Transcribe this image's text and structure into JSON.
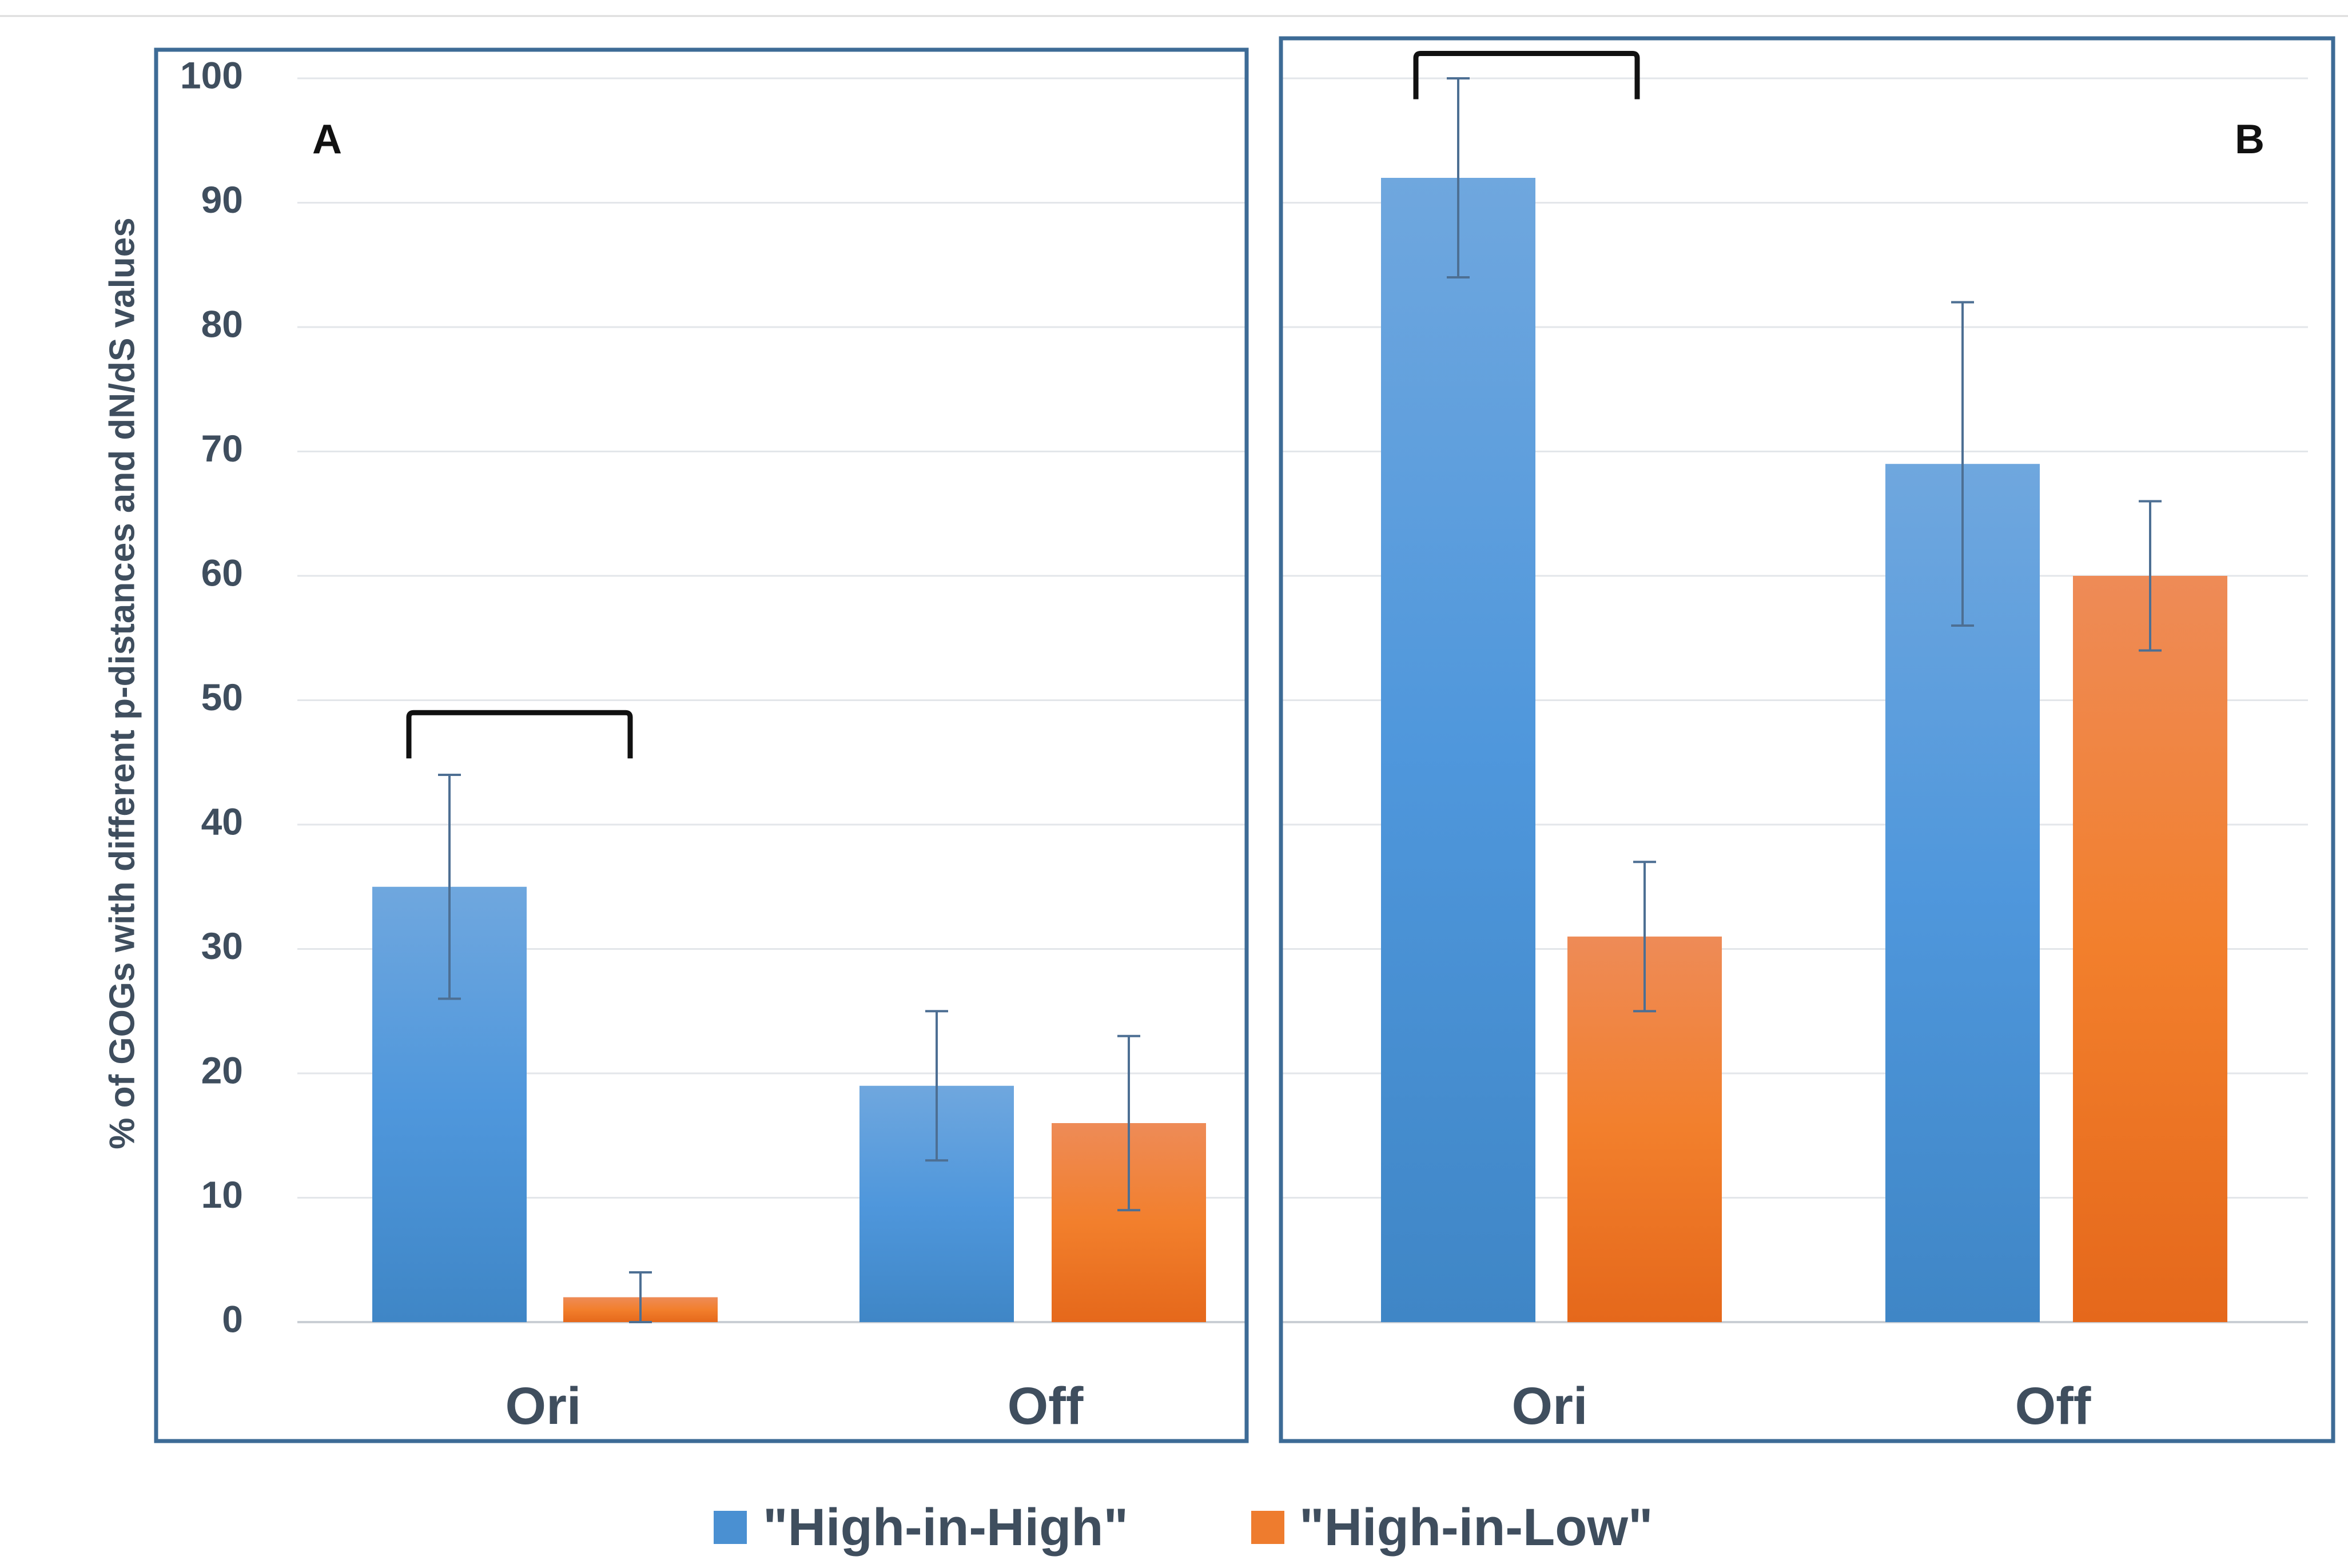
{
  "chart_data": {
    "type": "bar",
    "ylabel": "% of GOGs with different p-distances and dN/dS values",
    "ylim": [
      0,
      100
    ],
    "yticks": [
      "0",
      "10",
      "20",
      "30",
      "40",
      "50",
      "60",
      "70",
      "80",
      "90",
      "100"
    ],
    "grid": true,
    "legend_position": "bottom-center",
    "colors": {
      "high_in_high": "#4a90d2",
      "high_in_low": "#ee7c2e",
      "frame": "#3d6b96"
    },
    "series_names": [
      "\"High-in-High\"",
      "\"High-in-Low\""
    ],
    "panels": [
      {
        "label": "A",
        "categories": [
          "Ori",
          "Off"
        ],
        "series": [
          {
            "name": "\"High-in-High\"",
            "values": [
              35,
              19
            ],
            "err_low": [
              26,
              13
            ],
            "err_high": [
              44,
              25
            ]
          },
          {
            "name": "\"High-in-Low\"",
            "values": [
              2,
              16
            ],
            "err_low": [
              0,
              9
            ],
            "err_high": [
              4,
              23
            ]
          }
        ],
        "significance_bracket": {
          "category": "Ori",
          "y": 49
        }
      },
      {
        "label": "B",
        "categories": [
          "Ori",
          "Off"
        ],
        "series": [
          {
            "name": "\"High-in-High\"",
            "values": [
              92,
              69
            ],
            "err_low": [
              84,
              56
            ],
            "err_high": [
              100,
              82
            ]
          },
          {
            "name": "\"High-in-Low\"",
            "values": [
              31,
              60
            ],
            "err_low": [
              25,
              54
            ],
            "err_high": [
              37,
              66
            ]
          }
        ],
        "significance_bracket": {
          "category": "Ori",
          "y": 102
        }
      }
    ]
  }
}
